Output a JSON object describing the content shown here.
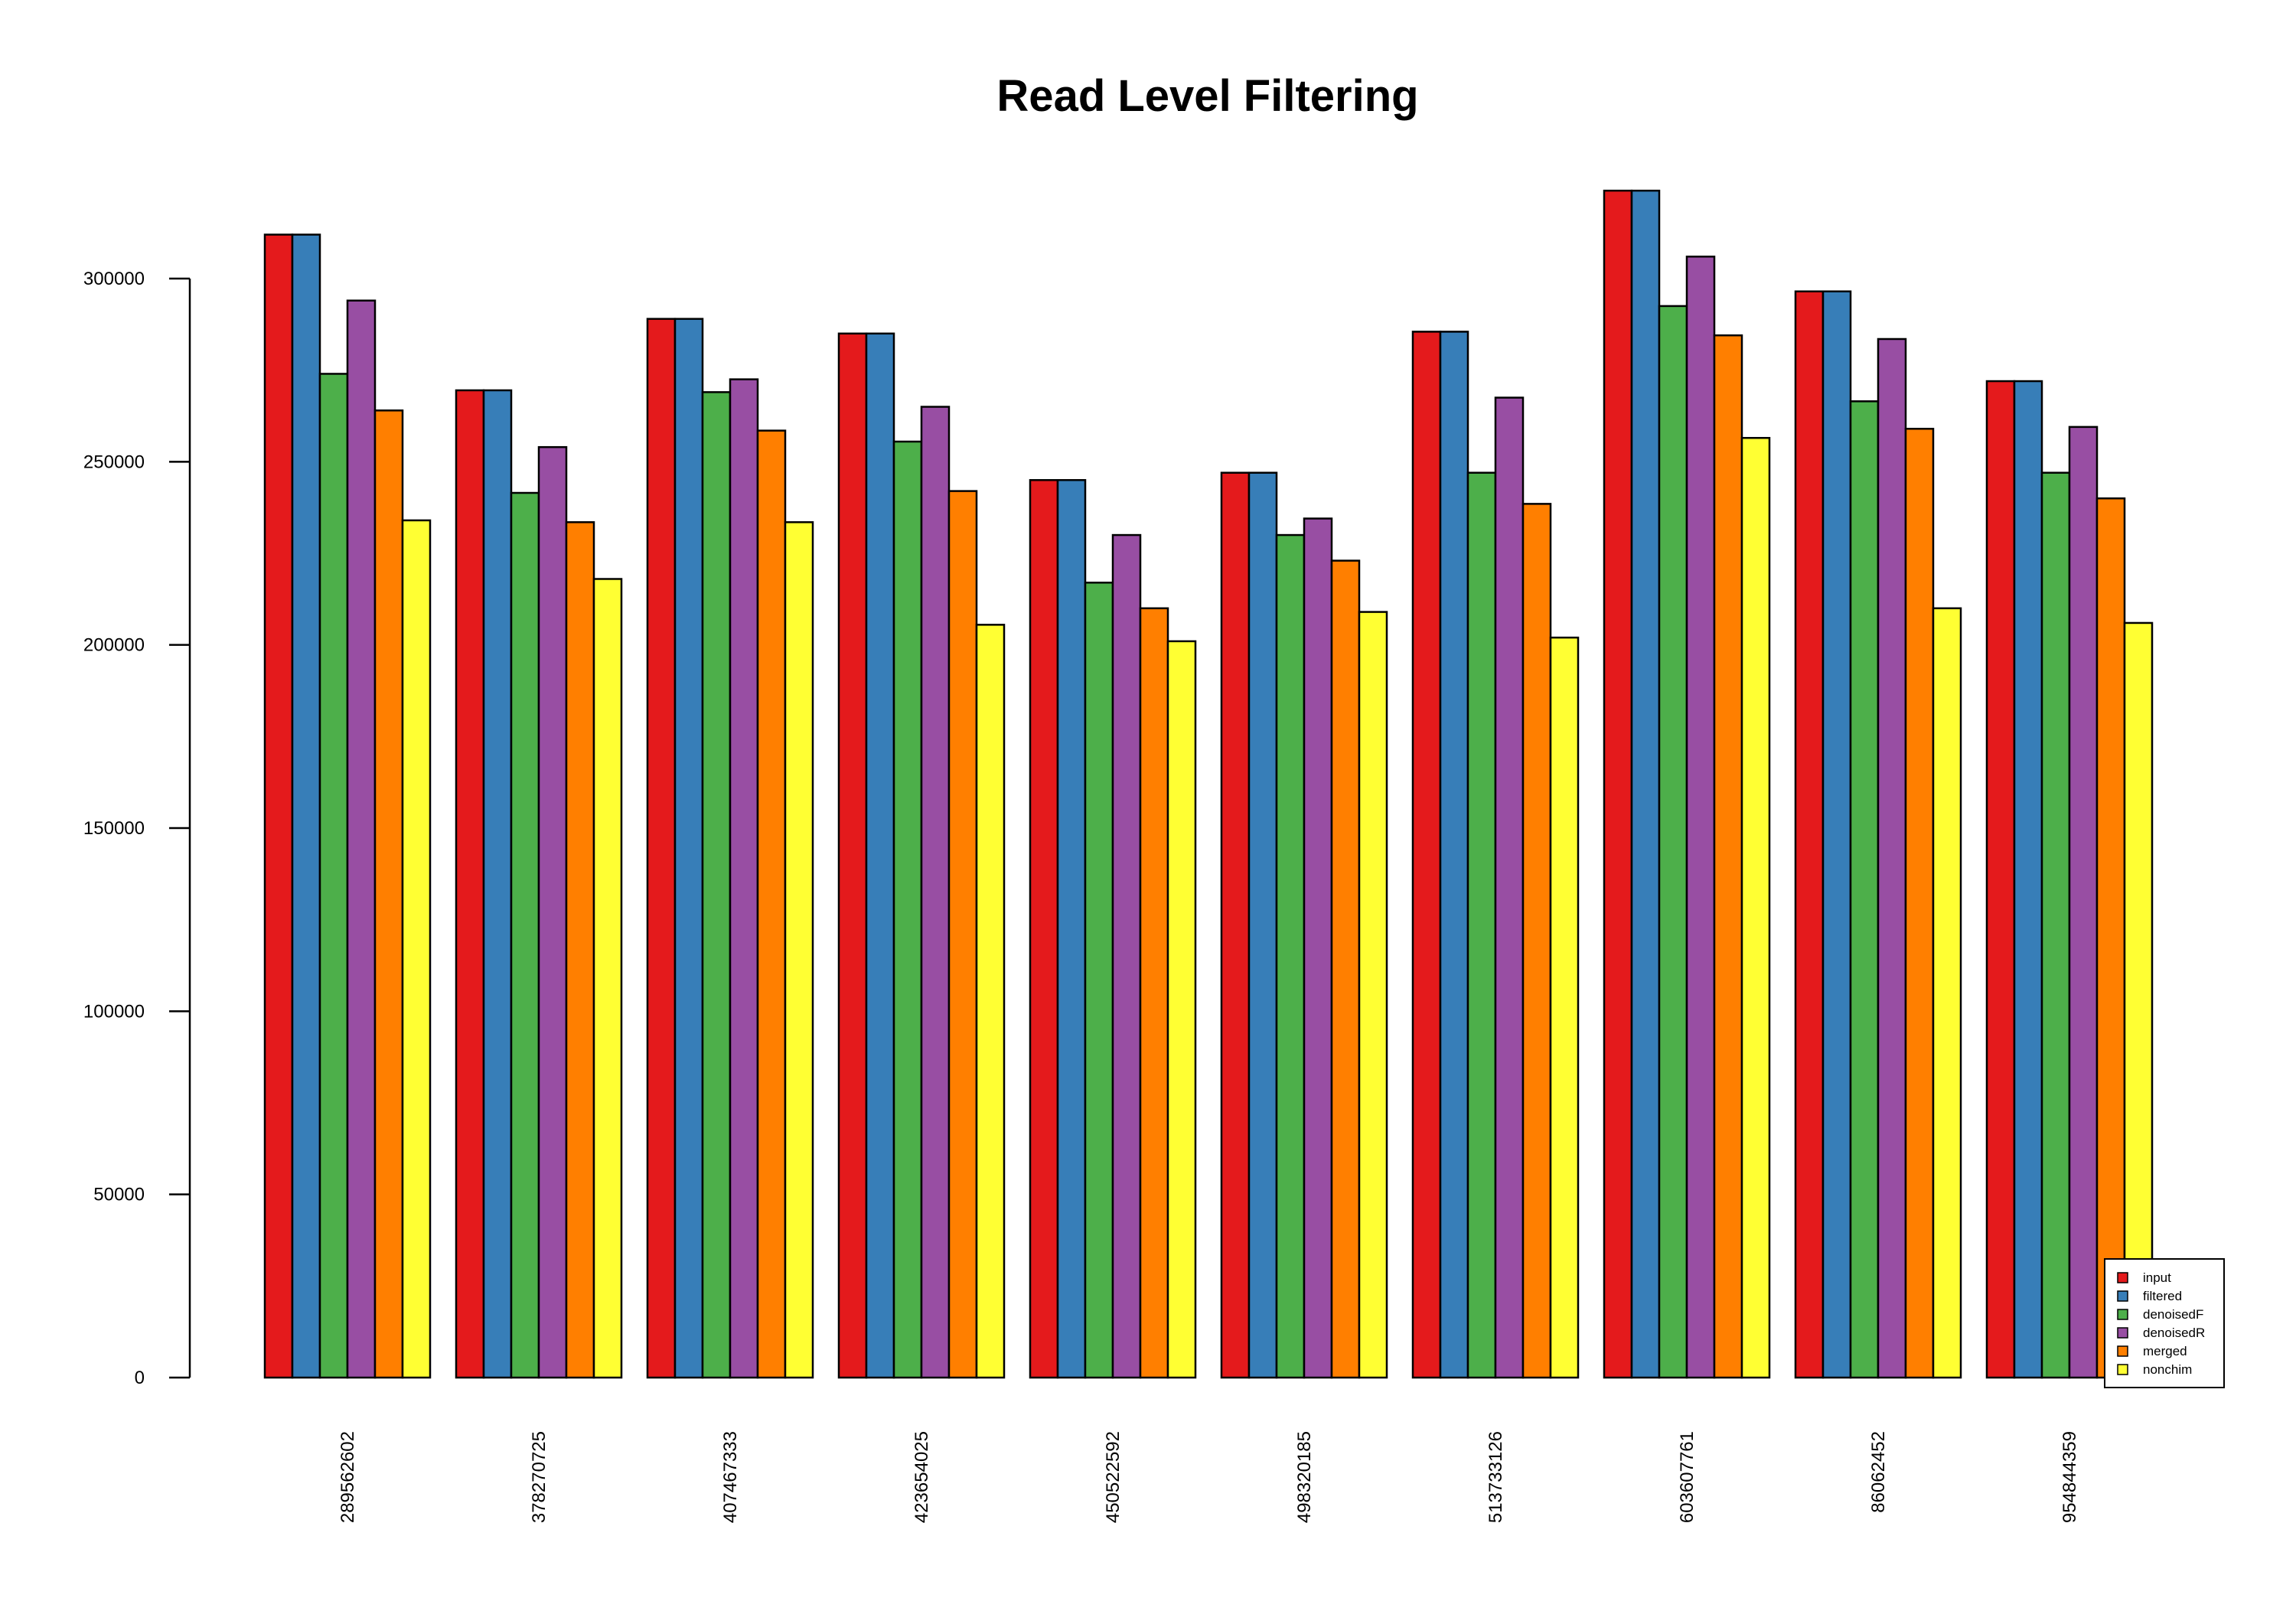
{
  "chart_data": {
    "type": "bar",
    "title": "Read Level Filtering",
    "xlabel": "",
    "ylabel": "",
    "ylim": [
      0,
      330000
    ],
    "yticks": [
      0,
      50000,
      100000,
      150000,
      200000,
      250000,
      300000
    ],
    "grid": false,
    "legend_position": "bottom-right",
    "categories": [
      "289562602",
      "378270725",
      "407467333",
      "423654025",
      "450522592",
      "498320185",
      "513733126",
      "603607761",
      "86062452",
      "954844359"
    ],
    "series": [
      {
        "name": "input",
        "color": "#E41A1C",
        "values": [
          312000,
          269500,
          289000,
          285000,
          245000,
          247000,
          285500,
          324000,
          296500,
          272000
        ]
      },
      {
        "name": "filtered",
        "color": "#377EB8",
        "values": [
          312000,
          269500,
          289000,
          285000,
          245000,
          247000,
          285500,
          324000,
          296500,
          272000
        ]
      },
      {
        "name": "denoisedF",
        "color": "#4DAF4A",
        "values": [
          274000,
          241500,
          269000,
          255500,
          217000,
          230000,
          247000,
          292500,
          266500,
          247000
        ]
      },
      {
        "name": "denoisedR",
        "color": "#984EA3",
        "values": [
          294000,
          254000,
          272500,
          265000,
          230000,
          234500,
          267500,
          306000,
          283500,
          259500
        ]
      },
      {
        "name": "merged",
        "color": "#FF7F00",
        "values": [
          264000,
          233500,
          258500,
          242000,
          210000,
          223000,
          238500,
          284500,
          259000,
          240000
        ]
      },
      {
        "name": "nonchim",
        "color": "#FFFF33",
        "values": [
          234000,
          218000,
          233500,
          205500,
          201000,
          209000,
          202000,
          256500,
          210000,
          206000
        ]
      }
    ]
  }
}
